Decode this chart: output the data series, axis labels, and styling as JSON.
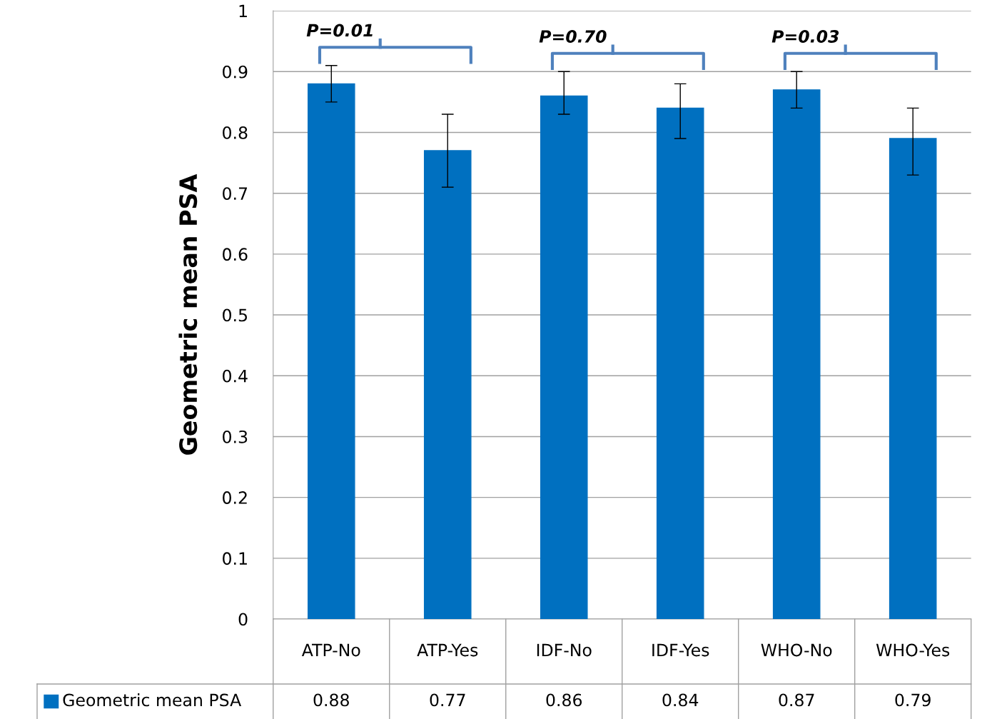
{
  "chart_data": {
    "type": "bar",
    "ylabel": "Geometric mean PSA",
    "categories": [
      "ATP-No",
      "ATP-Yes",
      "IDF-No",
      "IDF-Yes",
      "WHO-No",
      "WHO-Yes"
    ],
    "series": [
      {
        "name": "Geometric mean PSA",
        "color": "#0070c0",
        "values": [
          0.88,
          0.77,
          0.86,
          0.84,
          0.87,
          0.79
        ],
        "errors": [
          [
            0.85,
            0.91
          ],
          [
            0.71,
            0.83
          ],
          [
            0.83,
            0.9
          ],
          [
            0.79,
            0.88
          ],
          [
            0.84,
            0.9
          ],
          [
            0.73,
            0.84
          ]
        ]
      }
    ],
    "ylim": [
      0,
      1
    ],
    "yticks": [
      0,
      0.1,
      0.2,
      0.3,
      0.4,
      0.5,
      0.6,
      0.7,
      0.8,
      0.9,
      1
    ],
    "grid": "y",
    "data_labels": true,
    "legend": "bottom",
    "annotations": [
      "P=0.01",
      "P=0.70",
      "P=0.03"
    ]
  }
}
